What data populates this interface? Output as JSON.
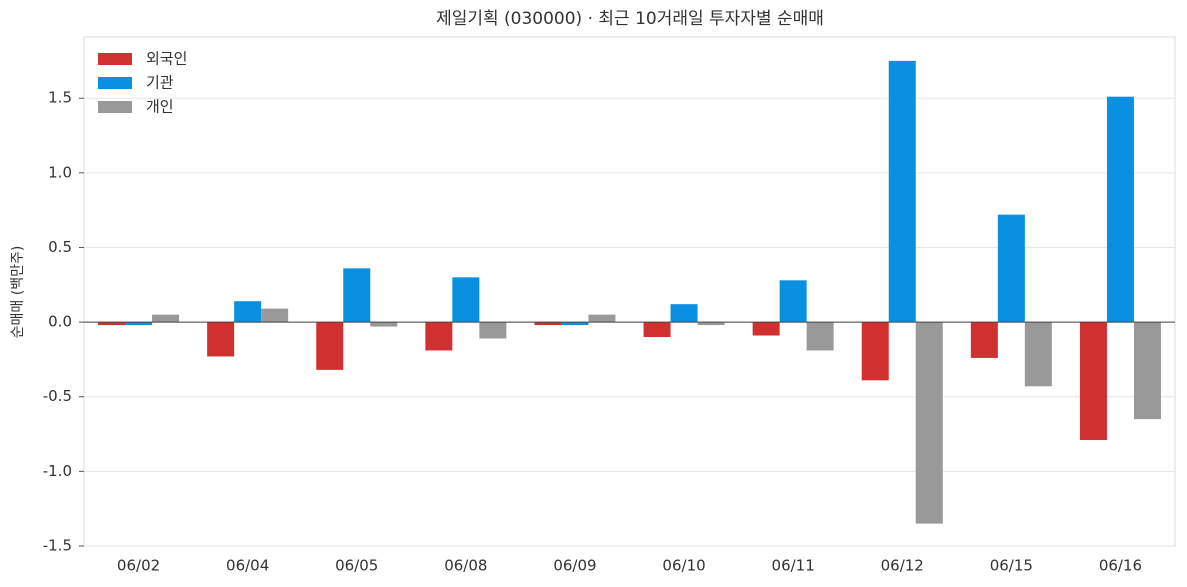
{
  "chart_data": {
    "type": "bar",
    "title": "제일기획 (030000) · 최근 10거래일 투자자별 순매매",
    "ylabel": "순매매 (백만주)",
    "categories": [
      "06/02",
      "06/04",
      "06/05",
      "06/08",
      "06/09",
      "06/10",
      "06/11",
      "06/12",
      "06/15",
      "06/16"
    ],
    "series": [
      {
        "name": "외국인",
        "color": "#d03030",
        "values": [
          -0.02,
          -0.23,
          -0.32,
          -0.19,
          -0.02,
          -0.1,
          -0.09,
          -0.39,
          -0.24,
          -0.79
        ]
      },
      {
        "name": "기관",
        "color": "#0a90e0",
        "values": [
          -0.02,
          0.14,
          0.36,
          0.3,
          -0.02,
          0.12,
          0.28,
          1.75,
          0.72,
          1.51
        ]
      },
      {
        "name": "개인",
        "color": "#999999",
        "values": [
          0.05,
          0.09,
          -0.03,
          -0.11,
          0.05,
          -0.02,
          -0.19,
          -1.35,
          -0.43,
          -0.65
        ]
      }
    ],
    "ylim": [
      -1.5,
      1.91
    ],
    "yticks": [
      -1.5,
      {
        "value": -1,
        "label": "-1.0"
      },
      -0.5,
      {
        "value": 0,
        "label": "0.0"
      },
      0.5,
      {
        "value": 1,
        "label": "1.0"
      },
      1.5
    ],
    "grid": true,
    "legend": "upper left"
  }
}
